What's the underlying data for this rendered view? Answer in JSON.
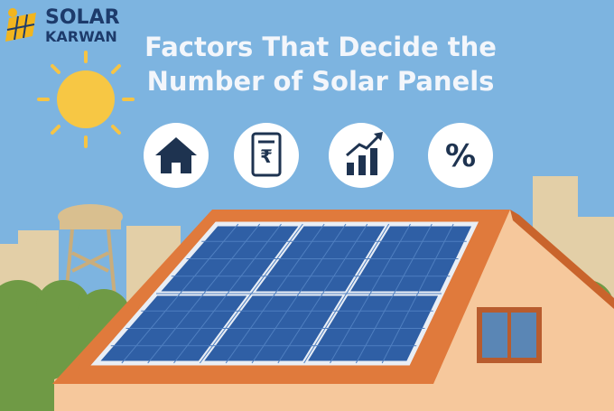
{
  "logo": {
    "line1": "SOLAR",
    "line2": "KARWAN"
  },
  "title": {
    "lines": [
      "Factors That Decide the",
      "Number of Solar Panels"
    ]
  },
  "icons": {
    "bill_symbol": "₹",
    "percent_symbol": "%"
  }
}
